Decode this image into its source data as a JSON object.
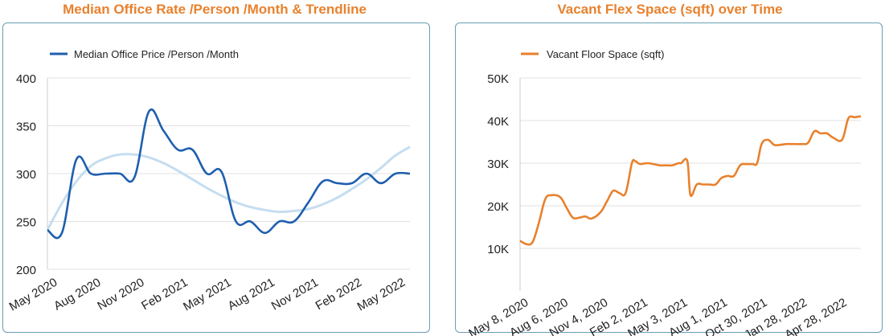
{
  "colors": {
    "title": "#e8812d",
    "border": "#6a9db5",
    "blue_series": "#1f5fae",
    "trend": "#c5ddf0",
    "orange_series": "#e8812d",
    "grid": "#e0e0e0",
    "axis_text": "#222222"
  },
  "chart_data": [
    {
      "type": "line",
      "title": "Median Office Rate /Person /Month & Trendline",
      "xlabel": "",
      "ylabel": "",
      "ylim": [
        200,
        400
      ],
      "yticks": [
        "400",
        "350",
        "300",
        "250",
        "200"
      ],
      "categories": [
        "May 2020",
        "Jun 2020",
        "Jul 2020",
        "Aug 2020",
        "Sep 2020",
        "Oct 2020",
        "Nov 2020",
        "Dec 2020",
        "Jan 2021",
        "Feb 2021",
        "Mar 2021",
        "Apr 2021",
        "May 2021",
        "Jun 2021",
        "Jul 2021",
        "Aug 2021",
        "Sep 2021",
        "Oct 2021",
        "Nov 2021",
        "Dec 2021",
        "Jan 2022",
        "Feb 2022",
        "Mar 2022",
        "Apr 2022",
        "May 2022",
        "Jun 2022"
      ],
      "xtick_labels": [
        "May 2020",
        "Aug 2020",
        "Nov 2020",
        "Feb 2021",
        "May 2021",
        "Aug 2021",
        "Nov 2021",
        "Feb 2022",
        "May 2022"
      ],
      "legend": "top-left",
      "series": [
        {
          "name": "Median Office Price /Person /Month",
          "values": [
            241,
            238,
            315,
            300,
            300,
            300,
            296,
            365,
            345,
            325,
            325,
            300,
            302,
            250,
            250,
            238,
            250,
            250,
            270,
            292,
            290,
            290,
            300,
            290,
            300,
            300
          ]
        },
        {
          "name": "",
          "values": [
            241,
            269,
            292,
            308,
            316,
            320,
            320,
            317,
            311,
            303,
            294,
            285,
            277,
            270,
            265,
            262,
            260,
            261,
            263,
            268,
            275,
            284,
            294,
            306,
            319,
            328
          ]
        }
      ]
    },
    {
      "type": "line",
      "title": "Vacant Flex Space (sqft) over Time",
      "xlabel": "",
      "ylabel": "",
      "ylim": [
        0,
        50000
      ],
      "yticks": [
        "50K",
        "40K",
        "30K",
        "20K",
        "10K"
      ],
      "xtick_labels": [
        "May 8, 2020",
        "Aug 6, 2020",
        "Nov 4, 2020",
        "Feb 2, 2021",
        "May 3, 2021",
        "Aug 1, 2021",
        "Oct 30, 2021",
        "Jan 28, 2022",
        "Apr 28, 2022"
      ],
      "legend": "top-left",
      "series": [
        {
          "name": "Vacant Floor Space (sqft)",
          "x": [
            "2020-05-08",
            "2020-05-22",
            "2020-06-05",
            "2020-06-19",
            "2020-07-03",
            "2020-07-17",
            "2020-08-06",
            "2020-08-20",
            "2020-09-03",
            "2020-09-17",
            "2020-10-01",
            "2020-10-15",
            "2020-11-04",
            "2020-11-18",
            "2020-12-02",
            "2020-12-16",
            "2020-12-30",
            "2021-01-13",
            "2021-01-20",
            "2021-01-27",
            "2021-02-02",
            "2021-02-16",
            "2021-03-02",
            "2021-03-16",
            "2021-03-30",
            "2021-04-13",
            "2021-04-27",
            "2021-05-03",
            "2021-05-17",
            "2021-05-24",
            "2021-06-07",
            "2021-06-21",
            "2021-07-05",
            "2021-07-19",
            "2021-08-01",
            "2021-08-15",
            "2021-08-29",
            "2021-09-12",
            "2021-09-26",
            "2021-10-10",
            "2021-10-20",
            "2021-10-30",
            "2021-11-13",
            "2021-11-27",
            "2021-12-11",
            "2021-12-25",
            "2022-01-08",
            "2022-01-28",
            "2022-02-11",
            "2022-02-25",
            "2022-03-11",
            "2022-03-25",
            "2022-04-08",
            "2022-04-28",
            "2022-05-12",
            "2022-05-26",
            "2022-06-09"
          ],
          "values": [
            11800,
            11000,
            11500,
            16000,
            21500,
            22500,
            22000,
            19500,
            17200,
            17200,
            17500,
            17000,
            18500,
            21000,
            23500,
            23000,
            23000,
            30000,
            30500,
            30000,
            29800,
            30000,
            29800,
            29500,
            29500,
            29500,
            30000,
            30000,
            30500,
            22500,
            25000,
            25000,
            25000,
            25000,
            26500,
            27000,
            27000,
            29500,
            29800,
            29800,
            30000,
            34500,
            35500,
            34300,
            34300,
            34500,
            34500,
            34500,
            34800,
            37500,
            37000,
            37000,
            36000,
            35500,
            40500,
            40800,
            41000
          ]
        }
      ]
    }
  ]
}
